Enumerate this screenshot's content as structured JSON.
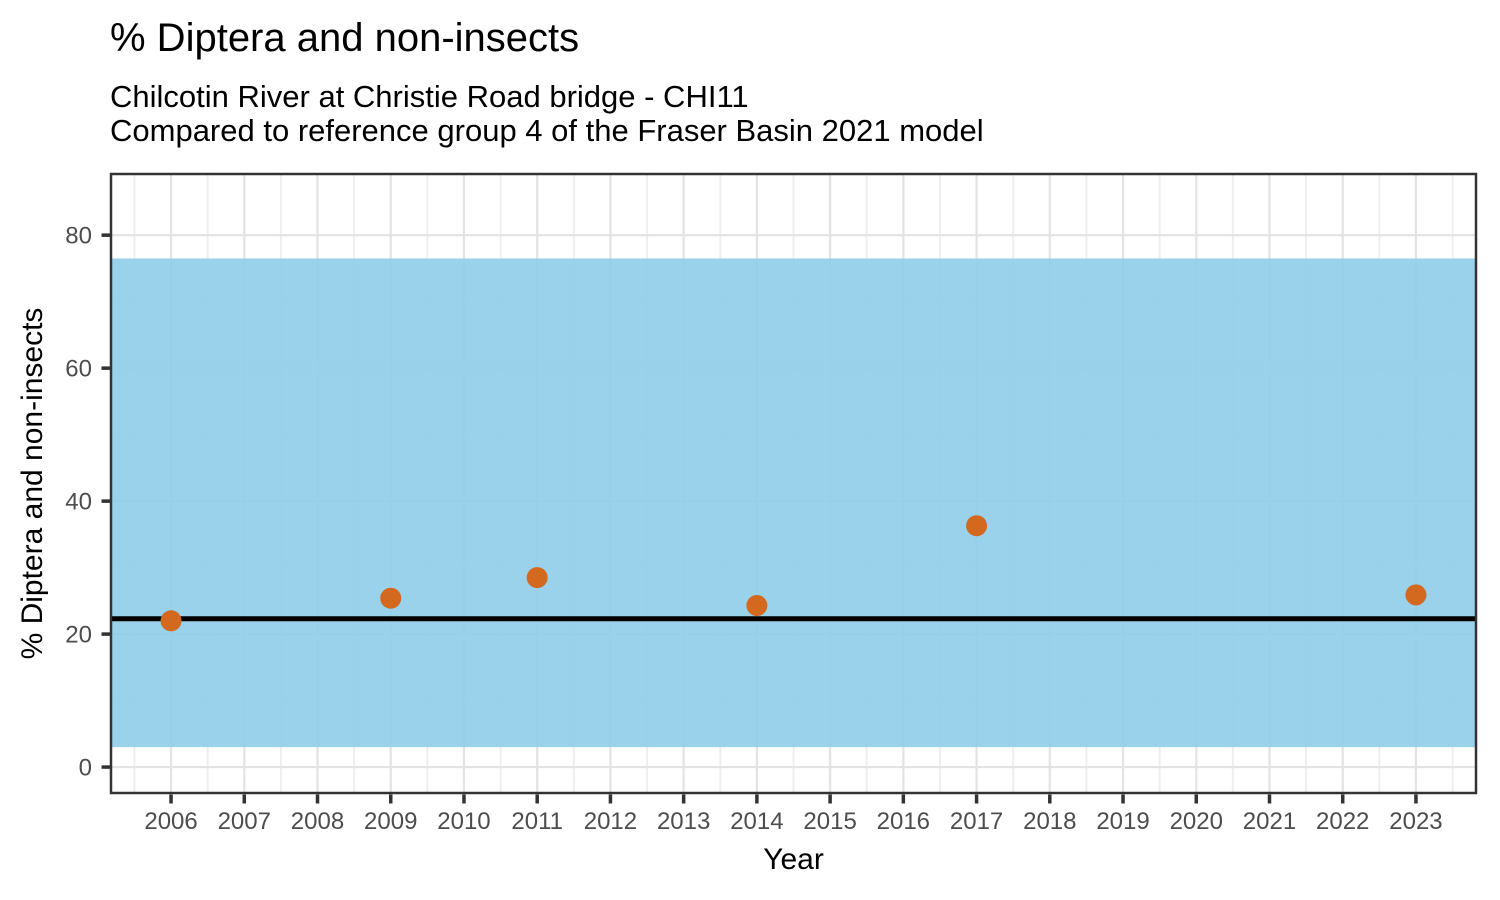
{
  "figure": {
    "title": "% Diptera and non-insects",
    "subtitle_lines": [
      "Chilcotin River at Christie Road bridge - CHI11",
      "Compared to reference group 4 of the Fraser Basin 2021 model"
    ]
  },
  "chart_data": {
    "type": "scatter",
    "title": "% Diptera and non-insects",
    "subtitle": "Chilcotin River at Christie Road bridge - CHI11 — Compared to reference group 4 of the Fraser Basin 2021 model",
    "xlabel": "Year",
    "ylabel": "% Diptera and non-insects",
    "points": [
      {
        "x": 2006,
        "y": 22.0
      },
      {
        "x": 2009,
        "y": 25.4
      },
      {
        "x": 2011,
        "y": 28.5
      },
      {
        "x": 2014,
        "y": 24.3
      },
      {
        "x": 2017,
        "y": 36.3
      },
      {
        "x": 2023,
        "y": 25.9
      }
    ],
    "reference_band": {
      "low": 3.0,
      "high": 76.5,
      "color": "#8FCDEA",
      "opacity": 0.9
    },
    "reference_line": {
      "value": 22.3,
      "color": "#000000",
      "width": 5
    },
    "point_style": {
      "color": "#D2691E",
      "radius": 10.5
    },
    "x_ticks": [
      2006,
      2007,
      2008,
      2009,
      2010,
      2011,
      2012,
      2013,
      2014,
      2015,
      2016,
      2017,
      2018,
      2019,
      2020,
      2021,
      2022,
      2023
    ],
    "y_ticks": [
      0,
      20,
      40,
      60,
      80
    ],
    "y_minor_ticks": [
      10,
      30,
      50,
      70
    ],
    "xlim": [
      2005.18,
      2023.82
    ],
    "ylim": [
      -3.9,
      89.2
    ],
    "grid": "major and minor, light gray on white panel",
    "legend": "none",
    "tick_label_color": "#4d4d4d",
    "grid_major_color": "#e3e3e3",
    "grid_minor_color": "#efefef",
    "panel_border_color": "#333333"
  }
}
